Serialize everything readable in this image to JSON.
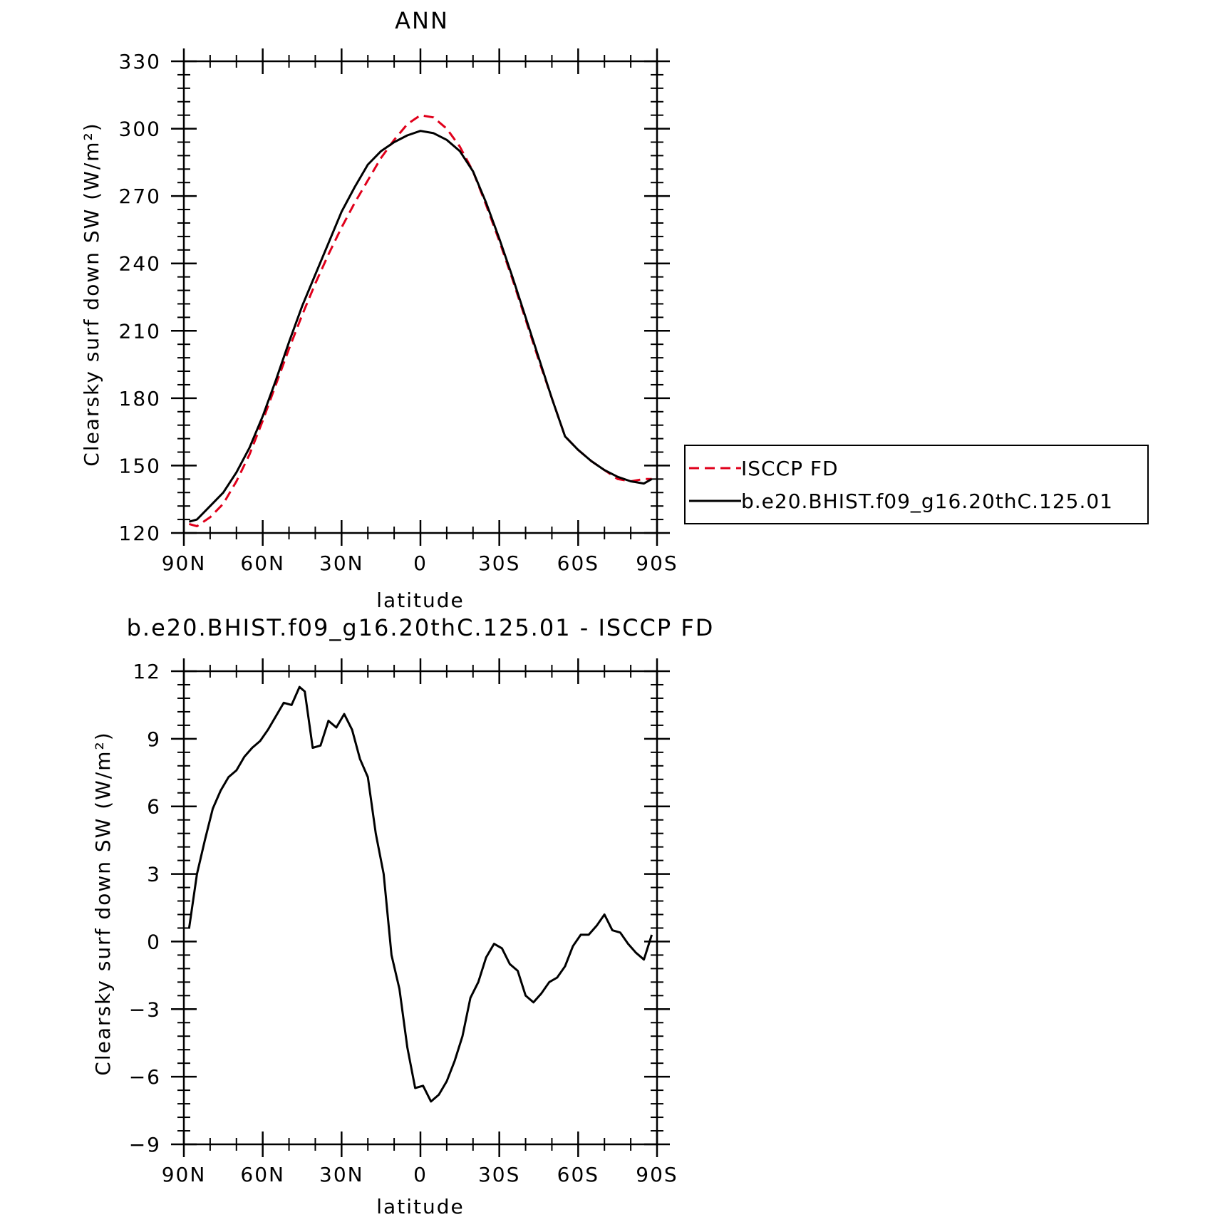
{
  "chart_data": [
    {
      "type": "line",
      "title": "ANN",
      "xlabel": "latitude",
      "ylabel": "Clearsky surf down SW (W/m²)",
      "xlim": [
        90,
        -90
      ],
      "ylim": [
        120,
        330
      ],
      "xticks": [
        90,
        60,
        30,
        0,
        -30,
        -60,
        -90
      ],
      "xtick_labels": [
        "90N",
        "60N",
        "30N",
        "0",
        "30S",
        "60S",
        "90S"
      ],
      "yticks": [
        120,
        150,
        180,
        210,
        240,
        270,
        300,
        330
      ],
      "ytick_labels": [
        "120",
        "150",
        "180",
        "210",
        "240",
        "270",
        "300",
        "330"
      ],
      "legend_position": "right",
      "series": [
        {
          "name": "ISCCP FD",
          "color": "#e0001b",
          "dash": true,
          "x": [
            88,
            85,
            80,
            75,
            70,
            65,
            60,
            55,
            50,
            45,
            40,
            35,
            30,
            25,
            20,
            15,
            10,
            5,
            0,
            -5,
            -10,
            -15,
            -20,
            -25,
            -30,
            -35,
            -40,
            -45,
            -50,
            -55,
            -60,
            -65,
            -70,
            -75,
            -80,
            -85,
            -88
          ],
          "values": [
            124,
            123,
            127,
            133,
            143,
            155,
            170,
            186,
            202,
            217,
            231,
            244,
            256,
            267,
            277,
            287,
            295,
            302,
            306,
            305,
            300,
            292,
            281,
            266,
            250,
            233,
            215,
            197,
            180,
            163,
            157,
            152,
            148,
            144,
            143,
            144,
            144
          ]
        },
        {
          "name": "b.e20.BHIST.f09_g16.20thC.125.01",
          "color": "#000000",
          "dash": false,
          "x": [
            88,
            85,
            80,
            75,
            70,
            65,
            60,
            55,
            50,
            45,
            40,
            35,
            30,
            25,
            20,
            15,
            10,
            5,
            0,
            -5,
            -10,
            -15,
            -20,
            -25,
            -30,
            -35,
            -40,
            -45,
            -50,
            -55,
            -60,
            -65,
            -70,
            -75,
            -80,
            -85,
            -88
          ],
          "values": [
            125,
            126,
            132,
            138,
            147,
            158,
            172,
            188,
            205,
            221,
            235,
            249,
            263,
            274,
            284,
            290,
            294,
            297,
            299,
            298,
            295,
            290,
            281,
            267,
            251,
            234,
            216,
            198,
            180,
            163,
            157,
            152,
            148,
            145,
            143,
            142,
            144
          ]
        }
      ]
    },
    {
      "type": "line",
      "title": "b.e20.BHIST.f09_g16.20thC.125.01 - ISCCP FD",
      "xlabel": "latitude",
      "ylabel": "Clearsky surf down SW (W/m²)",
      "xlim": [
        90,
        -90
      ],
      "ylim": [
        -9,
        12
      ],
      "xticks": [
        90,
        60,
        30,
        0,
        -30,
        -60,
        -90
      ],
      "xtick_labels": [
        "90N",
        "60N",
        "30N",
        "0",
        "30S",
        "60S",
        "90S"
      ],
      "yticks": [
        -9,
        -6,
        -3,
        0,
        3,
        6,
        9,
        12
      ],
      "ytick_labels": [
        "−9",
        "−6",
        "−3",
        "0",
        "3",
        "6",
        "9",
        "12"
      ],
      "series": [
        {
          "color": "#000000",
          "dash": false,
          "x": [
            88,
            85,
            82,
            79,
            76,
            73,
            70,
            67,
            64,
            61,
            58,
            55,
            52,
            49,
            46,
            44,
            41,
            38,
            35,
            32,
            29,
            26,
            23,
            20,
            17,
            14,
            11,
            8,
            5,
            2,
            -1,
            -4,
            -7,
            -10,
            -13,
            -16,
            -19,
            -22,
            -25,
            -28,
            -31,
            -34,
            -37,
            -40,
            -43,
            -46,
            -49,
            -52,
            -55,
            -58,
            -61,
            -64,
            -67,
            -70,
            -73,
            -76,
            -79,
            -82,
            -85,
            -88
          ],
          "values": [
            0.6,
            3.0,
            4.5,
            5.9,
            6.7,
            7.3,
            7.6,
            8.2,
            8.6,
            8.9,
            9.4,
            10.0,
            10.6,
            10.5,
            11.3,
            11.1,
            8.6,
            8.7,
            9.8,
            9.5,
            10.1,
            9.4,
            8.1,
            7.3,
            4.8,
            3.0,
            -0.6,
            -2.1,
            -4.7,
            -6.5,
            -6.4,
            -7.1,
            -6.8,
            -6.2,
            -5.3,
            -4.2,
            -2.5,
            -1.8,
            -0.7,
            -0.1,
            -0.3,
            -1.0,
            -1.3,
            -2.4,
            -2.7,
            -2.3,
            -1.8,
            -1.6,
            -1.1,
            -0.2,
            0.3,
            0.3,
            0.7,
            1.2,
            0.5,
            0.4,
            -0.1,
            -0.5,
            -0.8,
            0.3
          ]
        }
      ]
    }
  ]
}
